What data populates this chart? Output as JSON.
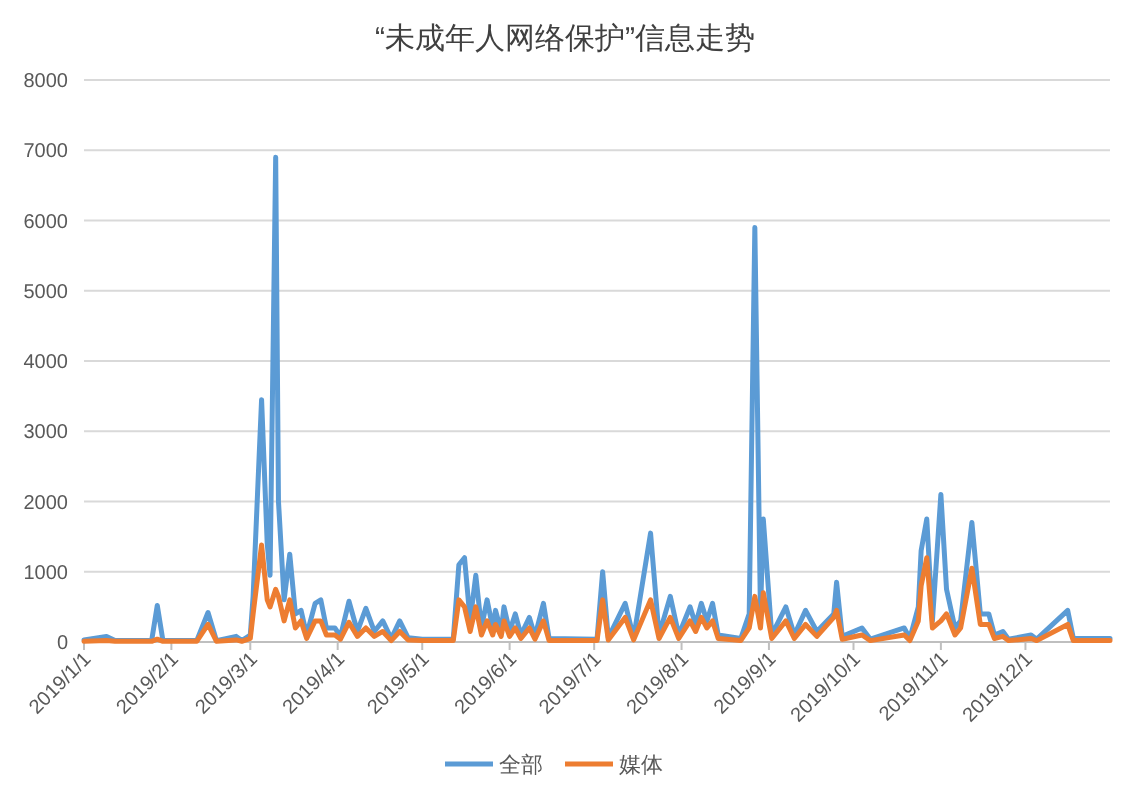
{
  "chart_data": {
    "type": "line",
    "title": "“未成年人网络保护”信息走势",
    "x": [
      "2019-01-01",
      "2019-01-09",
      "2019-01-12",
      "2019-01-25",
      "2019-01-27",
      "2019-01-29",
      "2019-02-10",
      "2019-02-14",
      "2019-02-17",
      "2019-02-24",
      "2019-02-26",
      "2019-03-01",
      "2019-03-02",
      "2019-03-05",
      "2019-03-07",
      "2019-03-08",
      "2019-03-10",
      "2019-03-11",
      "2019-03-13",
      "2019-03-15",
      "2019-03-17",
      "2019-03-19",
      "2019-03-21",
      "2019-03-24",
      "2019-03-26",
      "2019-03-28",
      "2019-03-31",
      "2019-04-02",
      "2019-04-05",
      "2019-04-08",
      "2019-04-11",
      "2019-04-14",
      "2019-04-17",
      "2019-04-20",
      "2019-04-23",
      "2019-04-26",
      "2019-05-01",
      "2019-05-12",
      "2019-05-14",
      "2019-05-16",
      "2019-05-18",
      "2019-05-20",
      "2019-05-22",
      "2019-05-24",
      "2019-05-26",
      "2019-05-27",
      "2019-05-29",
      "2019-05-30",
      "2019-06-01",
      "2019-06-03",
      "2019-06-05",
      "2019-06-08",
      "2019-06-10",
      "2019-06-13",
      "2019-06-15",
      "2019-07-02",
      "2019-07-04",
      "2019-07-06",
      "2019-07-12",
      "2019-07-15",
      "2019-07-21",
      "2019-07-24",
      "2019-07-28",
      "2019-07-31",
      "2019-08-04",
      "2019-08-06",
      "2019-08-08",
      "2019-08-10",
      "2019-08-12",
      "2019-08-14",
      "2019-08-22",
      "2019-08-25",
      "2019-08-27",
      "2019-08-29",
      "2019-08-30",
      "2019-09-02",
      "2019-09-07",
      "2019-09-10",
      "2019-09-14",
      "2019-09-18",
      "2019-09-24",
      "2019-09-25",
      "2019-09-27",
      "2019-10-04",
      "2019-10-07",
      "2019-10-19",
      "2019-10-21",
      "2019-10-24",
      "2019-10-25",
      "2019-10-27",
      "2019-10-29",
      "2019-11-01",
      "2019-11-03",
      "2019-11-06",
      "2019-11-08",
      "2019-11-12",
      "2019-11-15",
      "2019-11-18",
      "2019-11-20",
      "2019-11-23",
      "2019-11-25",
      "2019-12-03",
      "2019-12-05",
      "2019-12-16",
      "2019-12-18",
      "2019-12-31"
    ],
    "series": [
      {
        "name": "全部",
        "color": "#5b9bd5",
        "values": [
          30,
          80,
          20,
          20,
          520,
          20,
          20,
          420,
          20,
          80,
          20,
          100,
          650,
          3450,
          1400,
          950,
          6900,
          2000,
          600,
          1250,
          400,
          450,
          100,
          550,
          600,
          200,
          200,
          80,
          580,
          150,
          480,
          150,
          300,
          50,
          300,
          60,
          40,
          40,
          1100,
          1200,
          300,
          950,
          200,
          600,
          200,
          450,
          150,
          500,
          150,
          400,
          100,
          350,
          80,
          550,
          50,
          40,
          1000,
          60,
          550,
          60,
          1550,
          100,
          650,
          100,
          500,
          250,
          550,
          300,
          550,
          100,
          50,
          400,
          5900,
          400,
          1750,
          100,
          500,
          100,
          450,
          150,
          400,
          850,
          80,
          200,
          40,
          200,
          50,
          500,
          1300,
          1750,
          300,
          2100,
          750,
          200,
          300,
          1700,
          400,
          400,
          100,
          150,
          40,
          100,
          40,
          450,
          50,
          50
        ]
      },
      {
        "name": "媒体",
        "color": "#ed7d31",
        "values": [
          10,
          20,
          10,
          10,
          40,
          10,
          10,
          250,
          10,
          30,
          10,
          50,
          400,
          1380,
          600,
          500,
          750,
          650,
          300,
          600,
          200,
          300,
          50,
          300,
          300,
          100,
          100,
          40,
          280,
          80,
          200,
          80,
          150,
          20,
          150,
          30,
          20,
          20,
          600,
          500,
          150,
          500,
          100,
          300,
          100,
          250,
          80,
          300,
          80,
          200,
          50,
          200,
          40,
          300,
          20,
          20,
          600,
          30,
          350,
          30,
          600,
          50,
          350,
          50,
          300,
          150,
          350,
          200,
          300,
          50,
          20,
          200,
          650,
          200,
          700,
          50,
          300,
          50,
          250,
          80,
          350,
          450,
          40,
          100,
          20,
          100,
          20,
          300,
          800,
          1200,
          200,
          300,
          400,
          100,
          200,
          1050,
          250,
          250,
          50,
          80,
          20,
          50,
          20,
          250,
          20,
          20
        ]
      }
    ],
    "xlim": [
      "2019-01-01",
      "2019-12-31"
    ],
    "xticks": [
      {
        "value": "2019-01-01",
        "label": "2019/1/1"
      },
      {
        "value": "2019-02-01",
        "label": "2019/2/1"
      },
      {
        "value": "2019-03-01",
        "label": "2019/3/1"
      },
      {
        "value": "2019-04-01",
        "label": "2019/4/1"
      },
      {
        "value": "2019-05-01",
        "label": "2019/5/1"
      },
      {
        "value": "2019-06-01",
        "label": "2019/6/1"
      },
      {
        "value": "2019-07-01",
        "label": "2019/7/1"
      },
      {
        "value": "2019-08-01",
        "label": "2019/8/1"
      },
      {
        "value": "2019-09-01",
        "label": "2019/9/1"
      },
      {
        "value": "2019-10-01",
        "label": "2019/10/1"
      },
      {
        "value": "2019-11-01",
        "label": "2019/11/1"
      },
      {
        "value": "2019-12-01",
        "label": "2019/12/1"
      }
    ],
    "ylim": [
      0,
      8000
    ],
    "yticks": [
      0,
      1000,
      2000,
      3000,
      4000,
      5000,
      6000,
      7000,
      8000
    ],
    "grid": "y",
    "legend": "bottom",
    "marker": "none"
  }
}
